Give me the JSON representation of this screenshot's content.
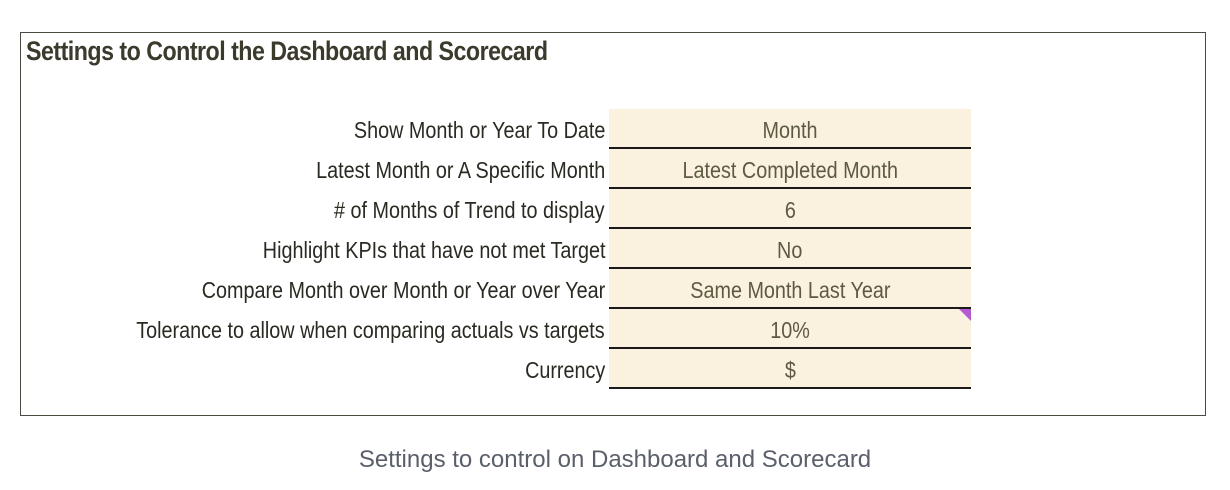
{
  "panel": {
    "title": "Settings to Control the Dashboard and Scorecard"
  },
  "settings": [
    {
      "label": "Show Month or Year To Date",
      "value": "Month"
    },
    {
      "label": "Latest Month or A Specific Month",
      "value": "Latest Completed Month"
    },
    {
      "label": "# of Months of Trend to display",
      "value": "6"
    },
    {
      "label": "Highlight KPIs that have not met Target",
      "value": "No"
    },
    {
      "label": "Compare Month over Month or Year over Year",
      "value": "Same Month Last Year"
    },
    {
      "label": "Tolerance to allow when comparing actuals vs targets",
      "value": "10%"
    },
    {
      "label": "Currency",
      "value": "$"
    }
  ],
  "caption": "Settings to control on Dashboard and Scorecard",
  "colors": {
    "value_cell_background": "#fbf1df",
    "comment_marker": "#b45ad0"
  }
}
